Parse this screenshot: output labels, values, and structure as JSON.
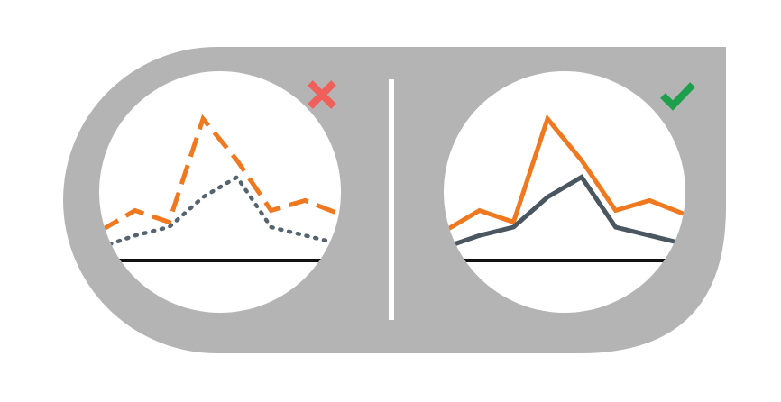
{
  "colors": {
    "background": "#ffffff",
    "panel": "#b3b4b3",
    "circle_fill": "#ffffff",
    "divider": "#ffffff",
    "series_primary": "#f0781e",
    "series_secondary_wrong": "#566470",
    "series_secondary_right": "#4a5660",
    "baseline": "#111111",
    "wrong_mark": "#f0605a",
    "right_mark": "#1e9f4b"
  },
  "panels": [
    {
      "id": "wrong",
      "status_icon": "cross-icon",
      "line_styles": [
        "dashed",
        "dotted"
      ],
      "series": [
        {
          "values": [
            0.18,
            0.3,
            0.23,
            0.85,
            0.6,
            0.3,
            0.36,
            0.28
          ]
        },
        {
          "values": [
            0.08,
            0.15,
            0.2,
            0.38,
            0.5,
            0.2,
            0.15,
            0.1
          ]
        }
      ]
    },
    {
      "id": "right",
      "status_icon": "check-icon",
      "line_styles": [
        "solid",
        "solid"
      ],
      "series": [
        {
          "values": [
            0.18,
            0.3,
            0.23,
            0.85,
            0.6,
            0.3,
            0.36,
            0.28
          ]
        },
        {
          "values": [
            0.08,
            0.15,
            0.2,
            0.38,
            0.5,
            0.2,
            0.15,
            0.1
          ]
        }
      ]
    }
  ]
}
